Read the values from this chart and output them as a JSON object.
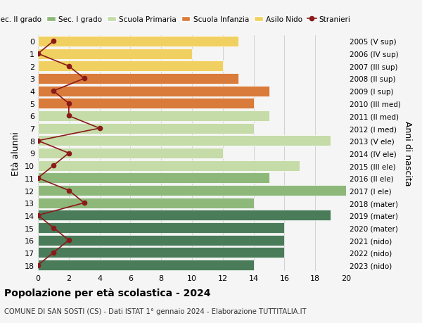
{
  "ages": [
    18,
    17,
    16,
    15,
    14,
    13,
    12,
    11,
    10,
    9,
    8,
    7,
    6,
    5,
    4,
    3,
    2,
    1,
    0
  ],
  "years": [
    "2005 (V sup)",
    "2006 (IV sup)",
    "2007 (III sup)",
    "2008 (II sup)",
    "2009 (I sup)",
    "2010 (III med)",
    "2011 (II med)",
    "2012 (I med)",
    "2013 (V ele)",
    "2014 (IV ele)",
    "2015 (III ele)",
    "2016 (II ele)",
    "2017 (I ele)",
    "2018 (mater)",
    "2019 (mater)",
    "2020 (mater)",
    "2021 (nido)",
    "2022 (nido)",
    "2023 (nido)"
  ],
  "bar_values": [
    14,
    16,
    16,
    16,
    19,
    14,
    20,
    15,
    17,
    12,
    19,
    14,
    15,
    14,
    15,
    13,
    12,
    10,
    13
  ],
  "bar_colors": [
    "#4a7c59",
    "#4a7c59",
    "#4a7c59",
    "#4a7c59",
    "#4a7c59",
    "#8db87a",
    "#8db87a",
    "#8db87a",
    "#c5dba8",
    "#c5dba8",
    "#c5dba8",
    "#c5dba8",
    "#c5dba8",
    "#d97b3a",
    "#d97b3a",
    "#d97b3a",
    "#f0d060",
    "#f0d060",
    "#f0d060"
  ],
  "stranieri": [
    0,
    1,
    2,
    1,
    0,
    3,
    2,
    0,
    1,
    2,
    0,
    4,
    2,
    2,
    1,
    3,
    2,
    0,
    1
  ],
  "stranieri_color": "#8b1a1a",
  "title": "Popolazione per età scolastica - 2024",
  "subtitle": "COMUNE DI SAN SOSTI (CS) - Dati ISTAT 1° gennaio 2024 - Elaborazione TUTTITALIA.IT",
  "ylabel": "Età alunni",
  "ylabel2": "Anni di nascita",
  "xlim": [
    0,
    20
  ],
  "xticks": [
    0,
    2,
    4,
    6,
    8,
    10,
    12,
    14,
    16,
    18,
    20
  ],
  "legend_labels": [
    "Sec. II grado",
    "Sec. I grado",
    "Scuola Primaria",
    "Scuola Infanzia",
    "Asilo Nido",
    "Stranieri"
  ],
  "legend_colors": [
    "#4a7c59",
    "#8db87a",
    "#c5dba8",
    "#d97b3a",
    "#f0d060",
    "#8b1a1a"
  ],
  "bg_color": "#f5f5f5",
  "grid_color": "#cccccc"
}
